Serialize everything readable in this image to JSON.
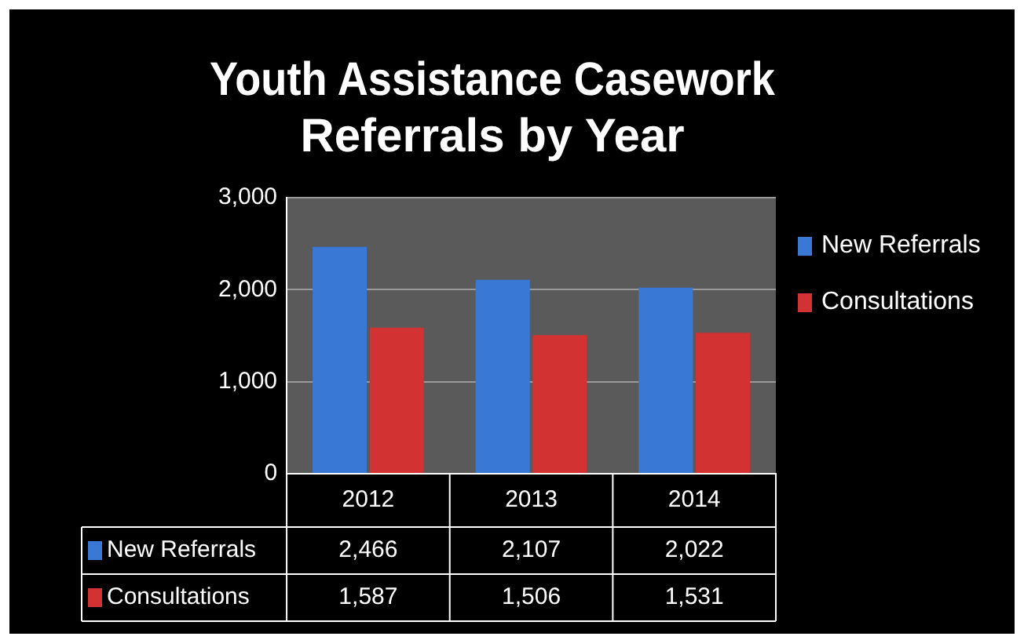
{
  "chart_data": {
    "type": "bar",
    "title": "Youth Assistance Casework Referrals by Year",
    "categories": [
      "2012",
      "2013",
      "2014"
    ],
    "series": [
      {
        "name": "New Referrals",
        "color": "#3a78d6",
        "values": [
          2466,
          2107,
          2022
        ],
        "value_labels": [
          "2,466",
          "2,107",
          "2,022"
        ]
      },
      {
        "name": "Consultations",
        "color": "#d23232",
        "values": [
          1587,
          1506,
          1531
        ],
        "value_labels": [
          "1,587",
          "1,506",
          "1,531"
        ]
      }
    ],
    "ylim": [
      0,
      3000
    ],
    "yticks": [
      {
        "value": 0,
        "label": "0"
      },
      {
        "value": 1000,
        "label": "1,000"
      },
      {
        "value": 2000,
        "label": "2,000"
      },
      {
        "value": 3000,
        "label": "3,000"
      }
    ],
    "grid": "y",
    "legend": "right"
  }
}
